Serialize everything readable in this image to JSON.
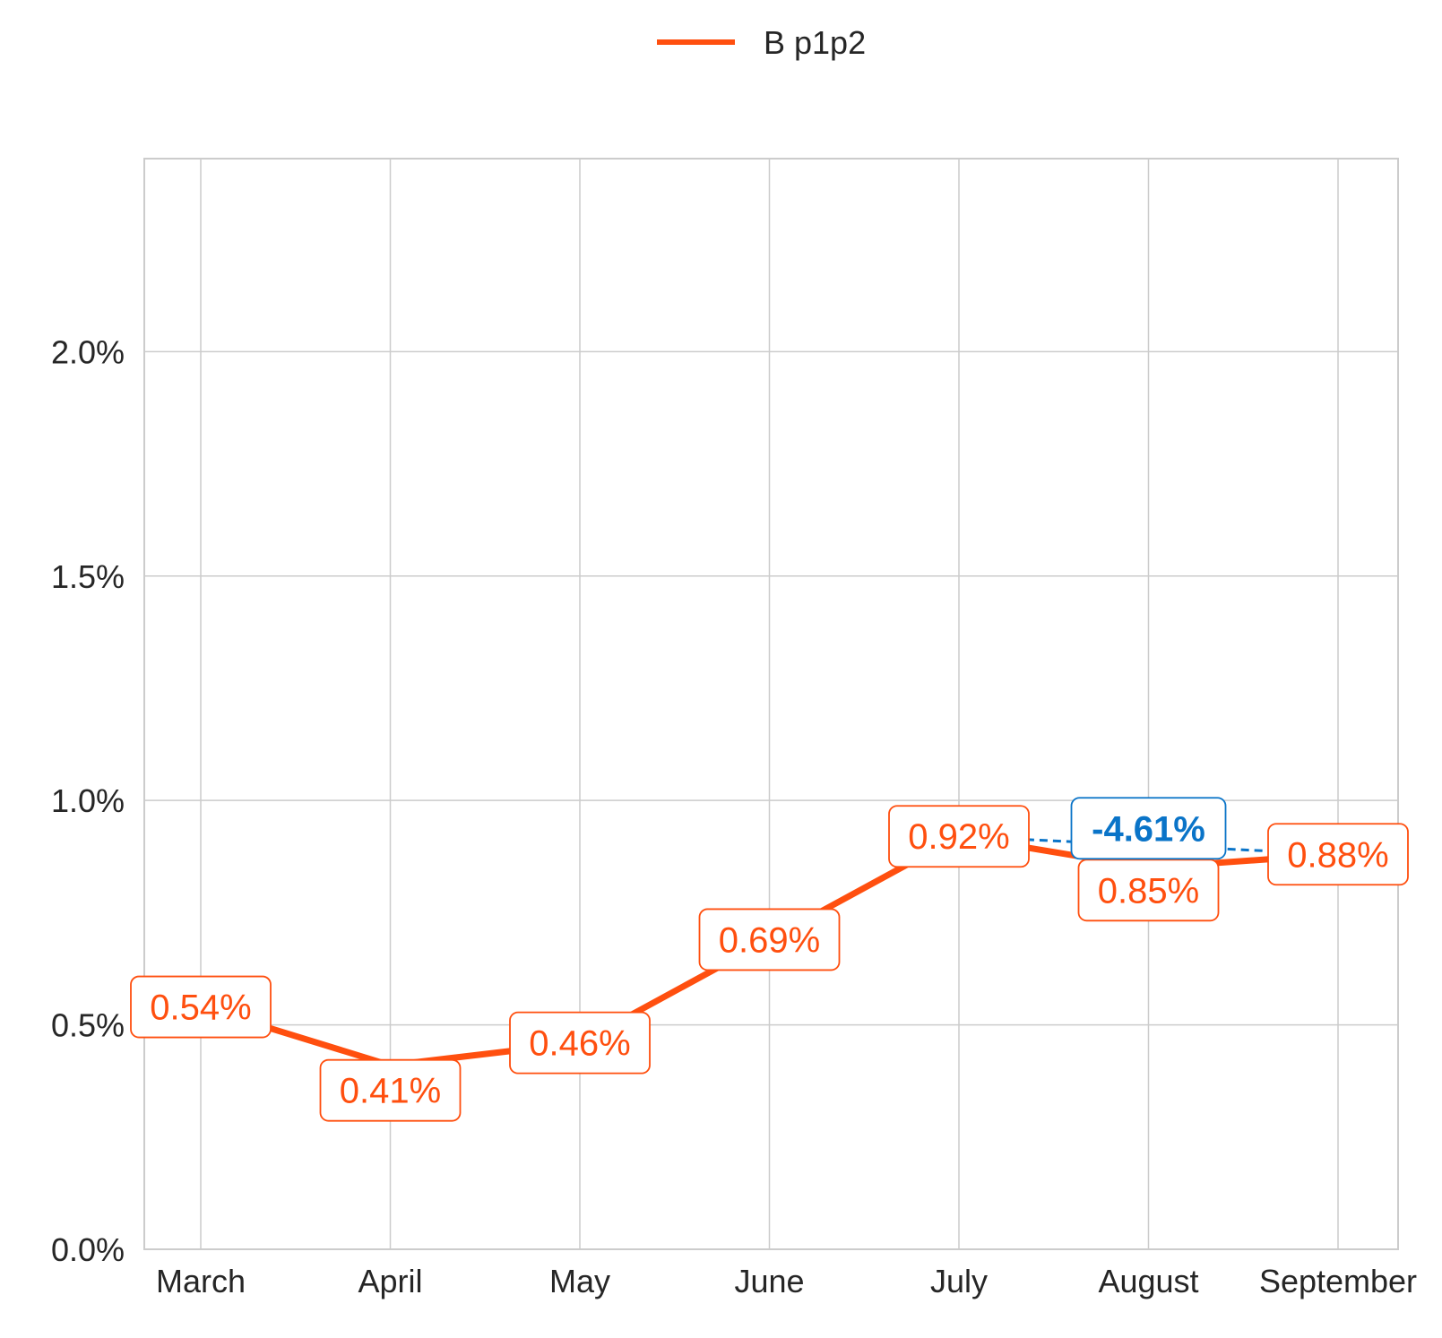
{
  "chart_data": {
    "type": "line",
    "categories": [
      "March",
      "April",
      "May",
      "June",
      "July",
      "August",
      "September"
    ],
    "series": [
      {
        "name": "B p1p2",
        "values": [
          0.54,
          0.41,
          0.46,
          0.69,
          0.92,
          0.85,
          0.88
        ],
        "labels": [
          "0.54%",
          "0.41%",
          "0.46%",
          "0.69%",
          "0.92%",
          "0.85%",
          "0.88%"
        ],
        "color": "#ff4f0f"
      }
    ],
    "change_annotation": {
      "text": "-4.61%",
      "from_category": "July",
      "to_category": "September",
      "from_value": 0.92,
      "to_value": 0.88,
      "color": "#0a74c8"
    },
    "y_ticks": [
      0.0,
      0.5,
      1.0,
      1.5,
      2.0
    ],
    "y_tick_labels": [
      "0.0%",
      "0.5%",
      "1.0%",
      "1.5%",
      "2.0%"
    ],
    "ylim": [
      0,
      2.43
    ],
    "grid": true,
    "legend_position": "top-center",
    "colors": {
      "grid": "#cccccc",
      "axis_text": "#262626",
      "background": "#ffffff"
    }
  }
}
